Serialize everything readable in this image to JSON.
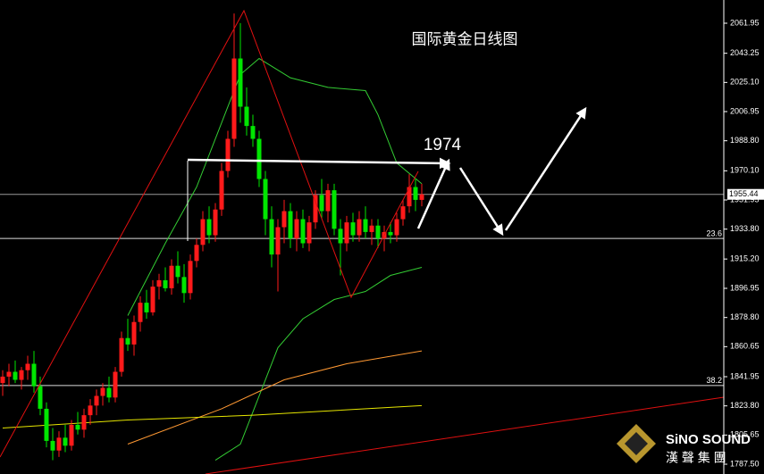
{
  "chart_data": {
    "type": "candlestick",
    "title": "国际黄金日线图",
    "annotation": "1974",
    "up_color": "#ff1a1a",
    "down_color": "#00e600",
    "open": [
      1838,
      1842,
      1845,
      1840,
      1846,
      1850,
      1836,
      1822,
      1802,
      1796,
      1804,
      1799,
      1812,
      1809,
      1818,
      1824,
      1830,
      1835,
      1829,
      1845,
      1866,
      1862,
      1876,
      1888,
      1882,
      1898,
      1902,
      1897,
      1911,
      1904,
      1894,
      1914,
      1924,
      1940,
      1930,
      1946,
      1970,
      1990,
      2040,
      2010,
      1998,
      1990,
      1965,
      1940,
      1918,
      1935,
      1945,
      1928,
      1940,
      1925,
      1938,
      1955,
      1945,
      1958,
      1934,
      1925,
      1938,
      1930,
      1940,
      1932,
      1936,
      1928,
      1932,
      1930,
      1940,
      1948,
      1960,
      1952
    ],
    "high": [
      1846,
      1850,
      1852,
      1848,
      1855,
      1858,
      1842,
      1826,
      1810,
      1808,
      1812,
      1815,
      1820,
      1822,
      1828,
      1834,
      1838,
      1842,
      1848,
      1870,
      1878,
      1880,
      1892,
      1896,
      1902,
      1906,
      1910,
      1915,
      1920,
      1912,
      1918,
      1928,
      1945,
      1948,
      1950,
      1975,
      1995,
      2068,
      2062,
      2022,
      2005,
      1995,
      1970,
      1948,
      1940,
      1952,
      1950,
      1945,
      1946,
      1942,
      1958,
      1965,
      1962,
      1962,
      1940,
      1942,
      1944,
      1945,
      1948,
      1940,
      1940,
      1936,
      1938,
      1944,
      1952,
      1968,
      1965,
      1962
    ],
    "low": [
      1830,
      1836,
      1838,
      1834,
      1840,
      1832,
      1818,
      1798,
      1790,
      1792,
      1795,
      1796,
      1806,
      1804,
      1812,
      1818,
      1824,
      1826,
      1826,
      1842,
      1858,
      1855,
      1870,
      1878,
      1880,
      1890,
      1895,
      1893,
      1900,
      1888,
      1890,
      1910,
      1920,
      1925,
      1926,
      1942,
      1966,
      1985,
      2000,
      1992,
      1985,
      1960,
      1930,
      1910,
      1895,
      1925,
      1922,
      1920,
      1922,
      1920,
      1934,
      1940,
      1938,
      1930,
      1905,
      1920,
      1926,
      1926,
      1928,
      1924,
      1922,
      1920,
      1925,
      1926,
      1936,
      1944,
      1945,
      1948
    ],
    "close": [
      1842,
      1845,
      1840,
      1846,
      1850,
      1836,
      1822,
      1802,
      1796,
      1804,
      1799,
      1812,
      1809,
      1818,
      1824,
      1830,
      1835,
      1829,
      1845,
      1866,
      1862,
      1876,
      1888,
      1882,
      1898,
      1902,
      1897,
      1911,
      1904,
      1894,
      1914,
      1924,
      1940,
      1930,
      1946,
      1970,
      1990,
      2040,
      2010,
      1998,
      1990,
      1965,
      1940,
      1918,
      1935,
      1945,
      1928,
      1940,
      1925,
      1938,
      1955,
      1945,
      1958,
      1934,
      1925,
      1938,
      1930,
      1940,
      1932,
      1936,
      1928,
      1932,
      1930,
      1940,
      1948,
      1960,
      1952,
      1955.44
    ],
    "overlays": [
      {
        "color": "#33cc33",
        "x": [
          20,
          26,
          31,
          35,
          38,
          41,
          46,
          52,
          58,
          60,
          63,
          67
        ],
        "values": [
          1880,
          1925,
          1960,
          2000,
          2030,
          2040,
          2028,
          2022,
          2020,
          2005,
          1975,
          1962
        ]
      },
      {
        "color": "#33cc33",
        "x": [
          34,
          38,
          41,
          44,
          48,
          53,
          58,
          62,
          67
        ],
        "values": [
          1790,
          1800,
          1830,
          1860,
          1878,
          1890,
          1895,
          1905,
          1910
        ]
      },
      {
        "color": "#ff9933",
        "x": [
          20,
          35,
          45,
          55,
          67
        ],
        "values": [
          1800,
          1822,
          1840,
          1850,
          1858
        ]
      },
      {
        "color": "#e6e600",
        "x": [
          0,
          20,
          40,
          67
        ],
        "values": [
          1810,
          1815,
          1818,
          1824
        ]
      }
    ],
    "current_price": 1955.44,
    "levels": [
      {
        "label": "23.6",
        "value": 1928
      },
      {
        "label": "38.2",
        "value": 1836.5
      }
    ],
    "ylim": [
      1781.4,
      2076.4
    ],
    "yticks": [
      2061.95,
      2043.25,
      {
        "value": 2025.1,
        "label": "2025.10"
      },
      2006.95,
      {
        "value": 1988.8,
        "label": "1988.80"
      },
      {
        "value": 1970.1,
        "label": "1970.10"
      },
      1951.95,
      {
        "value": 1933.8,
        "label": "1933.80"
      },
      {
        "value": 1915.2,
        "label": "1915.20"
      },
      1896.95,
      {
        "value": 1878.8,
        "label": "1878.80"
      },
      1860.65,
      1841.95,
      {
        "value": 1823.8,
        "label": "1823.80"
      },
      1805.65,
      {
        "value": 1787.5,
        "label": "1787.50"
      }
    ]
  },
  "logo": {
    "name": "SiNO SOUND",
    "subtitle": "漢 聲 集 團"
  }
}
